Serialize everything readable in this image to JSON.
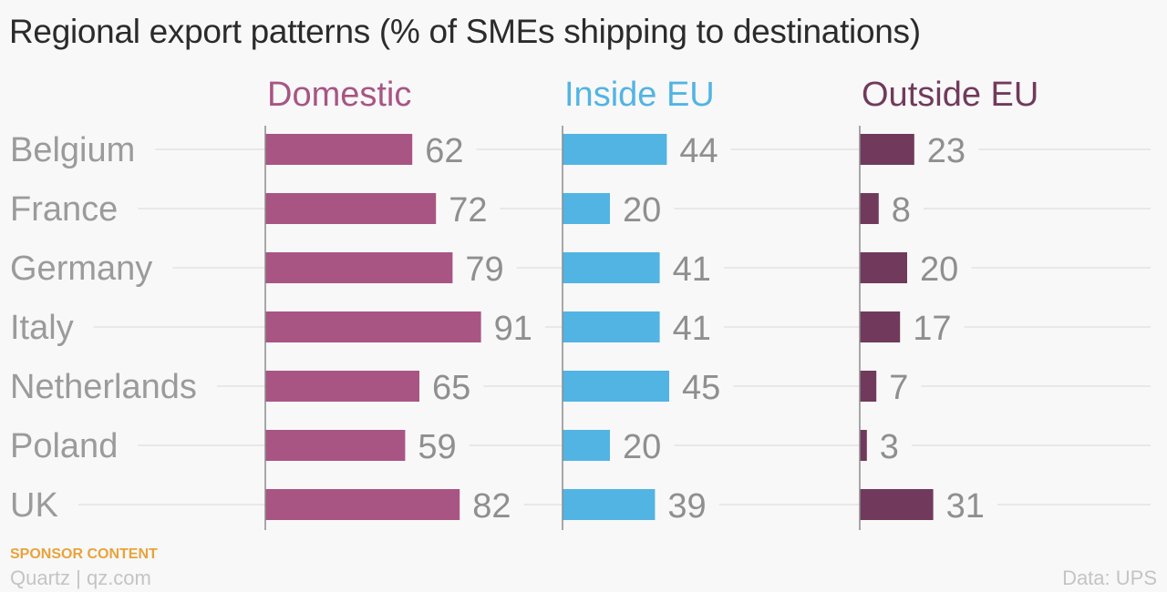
{
  "header": {
    "title": "Regional export patterns (% of SMEs shipping to destinations)"
  },
  "footer": {
    "sponsor": "SPONSOR CONTENT",
    "credit": "Quartz | qz.com",
    "source": "Data: UPS"
  },
  "colors": {
    "domestic": "#a85584",
    "inside_eu": "#52b4e3",
    "outside_eu": "#713a5c",
    "category_label": "#9b9b9b",
    "value_label": "#8f8f8f",
    "gridline": "#e3e3e3",
    "axis": "#8c8c8c"
  },
  "chart_data": {
    "type": "bar",
    "orientation": "horizontal",
    "layout": "small-multiples",
    "title": "Regional export patterns (% of SMEs shipping to destinations)",
    "categories": [
      "Belgium",
      "France",
      "Germany",
      "Italy",
      "Netherlands",
      "Poland",
      "UK"
    ],
    "series": [
      {
        "name": "Domestic",
        "values": [
          62,
          72,
          79,
          91,
          65,
          59,
          82
        ]
      },
      {
        "name": "Inside EU",
        "values": [
          44,
          20,
          41,
          41,
          45,
          20,
          39
        ]
      },
      {
        "name": "Outside EU",
        "values": [
          23,
          8,
          20,
          17,
          7,
          3,
          31
        ]
      }
    ],
    "xlim": [
      0,
      100
    ],
    "data_labels": true,
    "grid": true,
    "legend": "panel-titles"
  }
}
